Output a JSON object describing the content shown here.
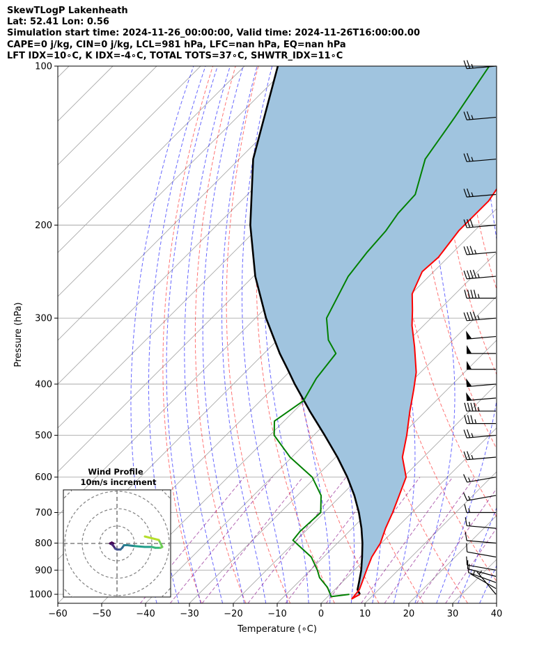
{
  "header": {
    "title": "SkewTLogP Lakenheath",
    "location": "Lat: 52.41   Lon: 0.56",
    "times": "Simulation start time: 2024-11-26_00:00:00, Valid time: 2024-11-26T16:00:00.00",
    "indices1": "CAPE=0 j/kg, CIN=0 j/kg, LCL=981 hPa, LFC=nan hPa, EQ=nan hPa",
    "indices2": "LFT IDX=10∘C, K IDX=-4∘C, TOTAL TOTS=37∘C, SHWTR_IDX=11∘C"
  },
  "colors": {
    "temperature": "#ff0000",
    "dewpoint": "#008000",
    "parcel": "#000000",
    "cape_fill": "#a0c4df",
    "isotherm": "#a9a9a9",
    "dry_adiabat": "#ff0000",
    "moist_adiabat": "#0000ff",
    "mixing_ratio": "#800080",
    "isobar": "#a9a9a9"
  },
  "chart_data": {
    "type": "line",
    "xlabel": "Temperature (∘C)",
    "ylabel": "Pressure (hPa)",
    "xlim": [
      -60,
      40
    ],
    "ylim": [
      1040,
      100
    ],
    "y_scale": "log",
    "skew_degrees": 45,
    "x_ticks": [
      -60,
      -50,
      -40,
      -30,
      -20,
      -10,
      0,
      10,
      20,
      30,
      40
    ],
    "y_ticks": [
      1000,
      900,
      800,
      700,
      600,
      500,
      400,
      300,
      200,
      100
    ],
    "grid": true,
    "series": [
      {
        "kind": "temperature",
        "points": [
          [
            6.8,
            1000
          ],
          [
            6,
            1020
          ],
          [
            5.6,
            980
          ],
          [
            4.6,
            950
          ],
          [
            2.8,
            900
          ],
          [
            1,
            850
          ],
          [
            -0.2,
            800
          ],
          [
            -2.4,
            750
          ],
          [
            -4.4,
            700
          ],
          [
            -6.8,
            650
          ],
          [
            -9.4,
            600
          ],
          [
            -14.8,
            550
          ],
          [
            -18.8,
            500
          ],
          [
            -23.6,
            450
          ],
          [
            -27.6,
            410
          ],
          [
            -31,
            380
          ],
          [
            -37.2,
            340
          ],
          [
            -42.6,
            310
          ],
          [
            -46,
            290
          ],
          [
            -49.8,
            270
          ],
          [
            -52.6,
            245
          ],
          [
            -52.2,
            230
          ],
          [
            -53.6,
            205
          ],
          [
            -53.6,
            180
          ],
          [
            -55.6,
            160
          ],
          [
            -57.6,
            145
          ],
          [
            -61,
            128
          ],
          [
            -64.2,
            115
          ],
          [
            -67.2,
            100
          ]
        ]
      },
      {
        "kind": "dewpoint",
        "points": [
          [
            4.4,
            1000
          ],
          [
            0.8,
            1010
          ],
          [
            -2.2,
            970
          ],
          [
            -6.2,
            930
          ],
          [
            -8.4,
            900
          ],
          [
            -12.8,
            850
          ],
          [
            -20.8,
            790
          ],
          [
            -21.2,
            760
          ],
          [
            -20.8,
            700
          ],
          [
            -24.6,
            650
          ],
          [
            -30.8,
            600
          ],
          [
            -40.4,
            550
          ],
          [
            -49,
            500
          ],
          [
            -52.2,
            470
          ],
          [
            -50.2,
            430
          ],
          [
            -52.4,
            390
          ],
          [
            -53.6,
            350
          ],
          [
            -58.4,
            330
          ],
          [
            -63.8,
            300
          ],
          [
            -68.4,
            250
          ],
          [
            -69.6,
            225
          ],
          [
            -70.2,
            205
          ],
          [
            -71.4,
            190
          ],
          [
            -71.8,
            175
          ],
          [
            -77.6,
            150
          ],
          [
            -80.4,
            125
          ],
          [
            -84.2,
            100
          ]
        ]
      },
      {
        "kind": "parcel",
        "points": [
          [
            6.8,
            1000
          ],
          [
            5.2,
            980
          ],
          [
            3.9,
            950
          ],
          [
            1.6,
            900
          ],
          [
            -1.2,
            850
          ],
          [
            -4.3,
            800
          ],
          [
            -7.9,
            750
          ],
          [
            -12.1,
            700
          ],
          [
            -17,
            650
          ],
          [
            -22.8,
            600
          ],
          [
            -29.6,
            550
          ],
          [
            -37.5,
            500
          ],
          [
            -46.4,
            450
          ],
          [
            -56,
            400
          ],
          [
            -61,
            375
          ],
          [
            -66.4,
            350
          ],
          [
            -77.6,
            300
          ],
          [
            -89.6,
            250
          ],
          [
            -102.4,
            200
          ],
          [
            -116.8,
            150
          ],
          [
            -132.4,
            100
          ]
        ]
      }
    ],
    "shaded_region": "CIN",
    "wind_barbs": {
      "pressures_hPa": [
        100,
        125,
        150,
        175,
        200,
        225,
        250,
        275,
        300,
        325,
        350,
        375,
        400,
        425,
        450,
        475,
        500,
        550,
        600,
        650,
        700,
        750,
        800,
        850,
        900,
        925,
        950,
        975,
        1000
      ],
      "speed_kt": [
        25,
        25,
        25,
        25,
        30,
        35,
        45,
        45,
        45,
        50,
        50,
        50,
        50,
        50,
        45,
        35,
        25,
        25,
        15,
        15,
        15,
        15,
        10,
        10,
        10,
        10,
        10,
        5,
        5
      ],
      "direction_deg": [
        265,
        265,
        265,
        265,
        265,
        265,
        265,
        270,
        265,
        265,
        270,
        270,
        265,
        265,
        270,
        270,
        265,
        265,
        260,
        260,
        270,
        275,
        275,
        280,
        280,
        285,
        290,
        300,
        320
      ]
    },
    "inset": {
      "title": "Wind Profile",
      "subtitle": "10m/s increment",
      "rings_ms": [
        10,
        20,
        30,
        40
      ],
      "hodograph_ms": [
        [
          -2,
          0
        ],
        [
          -3,
          0.5
        ],
        [
          -4,
          0
        ],
        [
          -3,
          -0.5
        ],
        [
          -2,
          -1.5
        ],
        [
          -1,
          -3
        ],
        [
          0,
          -3.5
        ],
        [
          2,
          -3.5
        ],
        [
          3,
          -2.5
        ],
        [
          4,
          -1
        ],
        [
          6,
          -1
        ],
        [
          10,
          -1.5
        ],
        [
          16,
          -2
        ],
        [
          20,
          -2
        ],
        [
          22,
          -2.5
        ],
        [
          25,
          -2.5
        ],
        [
          26,
          -2
        ],
        [
          24,
          2
        ],
        [
          20,
          3
        ],
        [
          16,
          4
        ]
      ]
    }
  }
}
